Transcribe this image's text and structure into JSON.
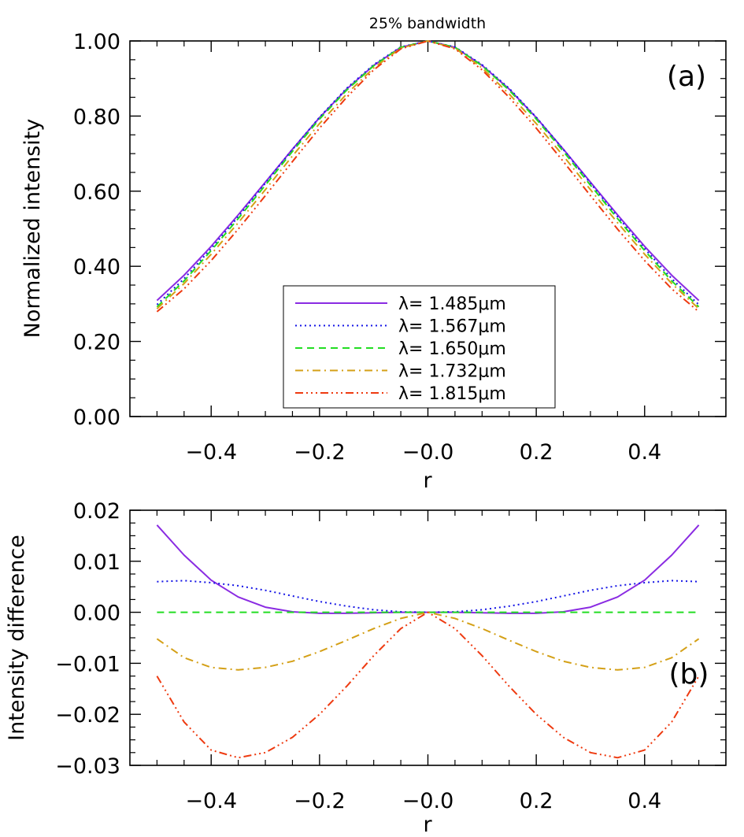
{
  "chart_data": [
    {
      "type": "line",
      "panel_label": "(a)",
      "title": "25% bandwidth",
      "xlabel": "r",
      "ylabel": "Normalized intensity",
      "xlim": [
        -0.55,
        0.55
      ],
      "ylim": [
        0.0,
        1.0
      ],
      "xticks": [
        -0.4,
        -0.2,
        0.0,
        0.2,
        0.4
      ],
      "xtick_labels": [
        "−0.4",
        "−0.2",
        "−0.0",
        "0.2",
        "0.4"
      ],
      "yticks": [
        0.0,
        0.2,
        0.4,
        0.6,
        0.8,
        1.0
      ],
      "ytick_labels": [
        "0.00",
        "0.20",
        "0.40",
        "0.60",
        "0.80",
        "1.00"
      ],
      "grid": false,
      "legend_position": "bottom-center",
      "x": [
        -0.5,
        -0.45,
        -0.4,
        -0.35,
        -0.3,
        -0.25,
        -0.2,
        -0.15,
        -0.1,
        -0.05,
        0.0,
        0.05,
        0.1,
        0.15,
        0.2,
        0.25,
        0.3,
        0.35,
        0.4,
        0.45,
        0.5
      ],
      "series": [
        {
          "name": "λ=  1.485μm",
          "color": "#8a2be2",
          "dash": "solid",
          "values": [
            0.309,
            0.376,
            0.453,
            0.537,
            0.624,
            0.712,
            0.796,
            0.872,
            0.935,
            0.983,
            1.0,
            0.983,
            0.935,
            0.872,
            0.796,
            0.712,
            0.624,
            0.537,
            0.453,
            0.376,
            0.309
          ]
        },
        {
          "name": "λ=  1.567μm",
          "color": "#1515e6",
          "dash": "dot",
          "values": [
            0.298,
            0.367,
            0.447,
            0.532,
            0.621,
            0.711,
            0.797,
            0.874,
            0.937,
            0.984,
            1.0,
            0.984,
            0.937,
            0.874,
            0.797,
            0.711,
            0.621,
            0.532,
            0.447,
            0.367,
            0.298
          ]
        },
        {
          "name": "λ=  1.650μm",
          "color": "#22dd22",
          "dash": "dash",
          "values": [
            0.292,
            0.361,
            0.442,
            0.527,
            0.616,
            0.706,
            0.792,
            0.869,
            0.934,
            0.983,
            1.0,
            0.983,
            0.934,
            0.869,
            0.792,
            0.706,
            0.616,
            0.527,
            0.442,
            0.361,
            0.292
          ]
        },
        {
          "name": "λ=  1.732μm",
          "color": "#d4a017",
          "dash": "dashdot",
          "values": [
            0.287,
            0.354,
            0.432,
            0.516,
            0.604,
            0.694,
            0.78,
            0.859,
            0.928,
            0.981,
            1.0,
            0.981,
            0.928,
            0.859,
            0.78,
            0.694,
            0.604,
            0.516,
            0.432,
            0.354,
            0.287
          ]
        },
        {
          "name": "λ=  1.815μm",
          "color": "#ee3a10",
          "dash": "dashdotdotdot",
          "values": [
            0.279,
            0.34,
            0.415,
            0.499,
            0.588,
            0.679,
            0.768,
            0.85,
            0.923,
            0.979,
            1.0,
            0.979,
            0.923,
            0.85,
            0.768,
            0.679,
            0.588,
            0.499,
            0.415,
            0.34,
            0.279
          ]
        }
      ]
    },
    {
      "type": "line",
      "panel_label": "(b)",
      "title": "",
      "xlabel": "r",
      "ylabel": "Intensity difference",
      "xlim": [
        -0.55,
        0.55
      ],
      "ylim": [
        -0.03,
        0.02
      ],
      "xticks": [
        -0.4,
        -0.2,
        0.0,
        0.2,
        0.4
      ],
      "xtick_labels": [
        "−0.4",
        "−0.2",
        "−0.0",
        "0.2",
        "0.4"
      ],
      "yticks": [
        -0.03,
        -0.02,
        -0.01,
        0.0,
        0.01,
        0.02
      ],
      "ytick_labels": [
        "−0.03",
        "−0.02",
        "−0.01",
        "0.00",
        "0.01",
        "0.02"
      ],
      "grid": false,
      "x": [
        -0.5,
        -0.45,
        -0.4,
        -0.35,
        -0.3,
        -0.25,
        -0.2,
        -0.15,
        -0.1,
        -0.05,
        0.0,
        0.05,
        0.1,
        0.15,
        0.2,
        0.25,
        0.3,
        0.35,
        0.4,
        0.45,
        0.5
      ],
      "series": [
        {
          "color": "#8a2be2",
          "dash": "solid",
          "values": [
            0.0171,
            0.0112,
            0.0063,
            0.003,
            0.001,
            0.0001,
            -0.0002,
            -0.0002,
            -0.0001,
            0.0,
            0.0,
            0.0,
            -0.0001,
            -0.0002,
            -0.0002,
            0.0001,
            0.001,
            0.003,
            0.0063,
            0.0112,
            0.0171
          ]
        },
        {
          "color": "#1515e6",
          "dash": "dot",
          "values": [
            0.006,
            0.0062,
            0.0058,
            0.0052,
            0.0043,
            0.0032,
            0.0021,
            0.0012,
            0.0005,
            0.0001,
            0.0,
            0.0001,
            0.0005,
            0.0012,
            0.0021,
            0.0032,
            0.0043,
            0.0052,
            0.0058,
            0.0062,
            0.006
          ]
        },
        {
          "color": "#22dd22",
          "dash": "dash",
          "values": [
            0.0,
            0.0,
            0.0,
            0.0,
            0.0,
            0.0,
            0.0,
            0.0,
            0.0,
            0.0,
            0.0,
            0.0,
            0.0,
            0.0,
            0.0,
            0.0,
            0.0,
            0.0,
            0.0,
            0.0,
            0.0
          ]
        },
        {
          "color": "#d4a017",
          "dash": "dashdot",
          "values": [
            -0.0052,
            -0.0089,
            -0.0108,
            -0.0113,
            -0.0108,
            -0.0096,
            -0.0077,
            -0.0055,
            -0.0032,
            -0.0012,
            0.0,
            -0.0012,
            -0.0032,
            -0.0055,
            -0.0077,
            -0.0096,
            -0.0108,
            -0.0113,
            -0.0108,
            -0.0089,
            -0.0052
          ]
        },
        {
          "color": "#ee3a10",
          "dash": "dashdotdotdot",
          "values": [
            -0.0125,
            -0.0215,
            -0.027,
            -0.0285,
            -0.0275,
            -0.0245,
            -0.02,
            -0.0145,
            -0.0085,
            -0.0032,
            0.0,
            -0.0032,
            -0.0085,
            -0.0145,
            -0.02,
            -0.0245,
            -0.0275,
            -0.0285,
            -0.027,
            -0.0215,
            -0.0125
          ]
        }
      ]
    }
  ]
}
